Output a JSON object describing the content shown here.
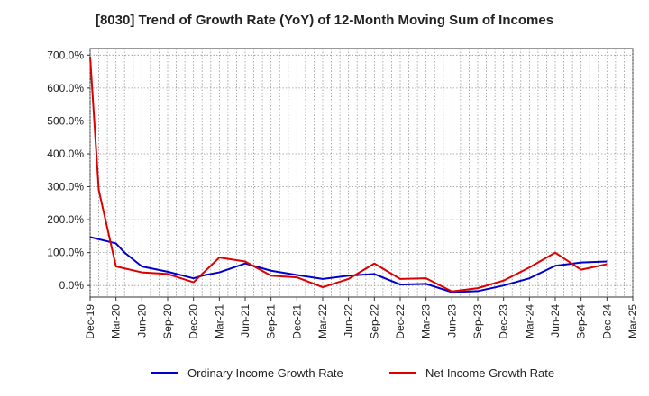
{
  "chart_data": {
    "type": "line",
    "title": "[8030]  Trend of Growth Rate (YoY) of 12-Month Moving Sum of Incomes",
    "xlabel": "",
    "ylabel": "",
    "x_ticks": [
      "Dec-19",
      "Mar-20",
      "Jun-20",
      "Sep-20",
      "Dec-20",
      "Mar-21",
      "Jun-21",
      "Sep-21",
      "Dec-21",
      "Mar-22",
      "Jun-22",
      "Sep-22",
      "Dec-22",
      "Mar-23",
      "Jun-23",
      "Sep-23",
      "Dec-23",
      "Mar-24",
      "Jun-24",
      "Sep-24",
      "Dec-24",
      "Mar-25"
    ],
    "y_ticks": [
      "0.0%",
      "100.0%",
      "200.0%",
      "300.0%",
      "400.0%",
      "500.0%",
      "600.0%",
      "700.0%"
    ],
    "ylim": [
      -35,
      720
    ],
    "y_tick_values": [
      0,
      100,
      200,
      300,
      400,
      500,
      600,
      700
    ],
    "grid": true,
    "legend_position": "bottom",
    "series": [
      {
        "name": "Ordinary Income Growth Rate",
        "color": "#0000cc",
        "values": [
          {
            "x": "Dec-19",
            "y": 147
          },
          {
            "x": "Mar-20",
            "y": 128
          },
          {
            "x": "Apr-20",
            "y": 100
          },
          {
            "x": "Jun-20",
            "y": 58
          },
          {
            "x": "Sep-20",
            "y": 42
          },
          {
            "x": "Dec-20",
            "y": 22
          },
          {
            "x": "Jan-21",
            "y": 30
          },
          {
            "x": "Mar-21",
            "y": 40
          },
          {
            "x": "Jun-21",
            "y": 67
          },
          {
            "x": "Sep-21",
            "y": 45
          },
          {
            "x": "Dec-21",
            "y": 32
          },
          {
            "x": "Mar-22",
            "y": 20
          },
          {
            "x": "Jun-22",
            "y": 30
          },
          {
            "x": "Sep-22",
            "y": 35
          },
          {
            "x": "Dec-22",
            "y": 3
          },
          {
            "x": "Mar-23",
            "y": 5
          },
          {
            "x": "Jun-23",
            "y": -20
          },
          {
            "x": "Sep-23",
            "y": -17
          },
          {
            "x": "Dec-23",
            "y": 0
          },
          {
            "x": "Mar-24",
            "y": 22
          },
          {
            "x": "Jun-24",
            "y": 60
          },
          {
            "x": "Sep-24",
            "y": 70
          },
          {
            "x": "Dec-24",
            "y": 73
          }
        ]
      },
      {
        "name": "Net Income Growth Rate",
        "color": "#dd0000",
        "values": [
          {
            "x": "Dec-19",
            "y": 695
          },
          {
            "x": "Jan-20",
            "y": 290
          },
          {
            "x": "Mar-20",
            "y": 58
          },
          {
            "x": "Jun-20",
            "y": 40
          },
          {
            "x": "Sep-20",
            "y": 35
          },
          {
            "x": "Dec-20",
            "y": 10
          },
          {
            "x": "Mar-21",
            "y": 85
          },
          {
            "x": "Jun-21",
            "y": 73
          },
          {
            "x": "Sep-21",
            "y": 30
          },
          {
            "x": "Dec-21",
            "y": 25
          },
          {
            "x": "Mar-22",
            "y": -5
          },
          {
            "x": "Jun-22",
            "y": 20
          },
          {
            "x": "Sep-22",
            "y": 67
          },
          {
            "x": "Dec-22",
            "y": 20
          },
          {
            "x": "Mar-23",
            "y": 22
          },
          {
            "x": "Jun-23",
            "y": -18
          },
          {
            "x": "Sep-23",
            "y": -8
          },
          {
            "x": "Dec-23",
            "y": 15
          },
          {
            "x": "Mar-24",
            "y": 55
          },
          {
            "x": "Jun-24",
            "y": 100
          },
          {
            "x": "Sep-24",
            "y": 48
          },
          {
            "x": "Dec-24",
            "y": 65
          }
        ]
      }
    ]
  }
}
